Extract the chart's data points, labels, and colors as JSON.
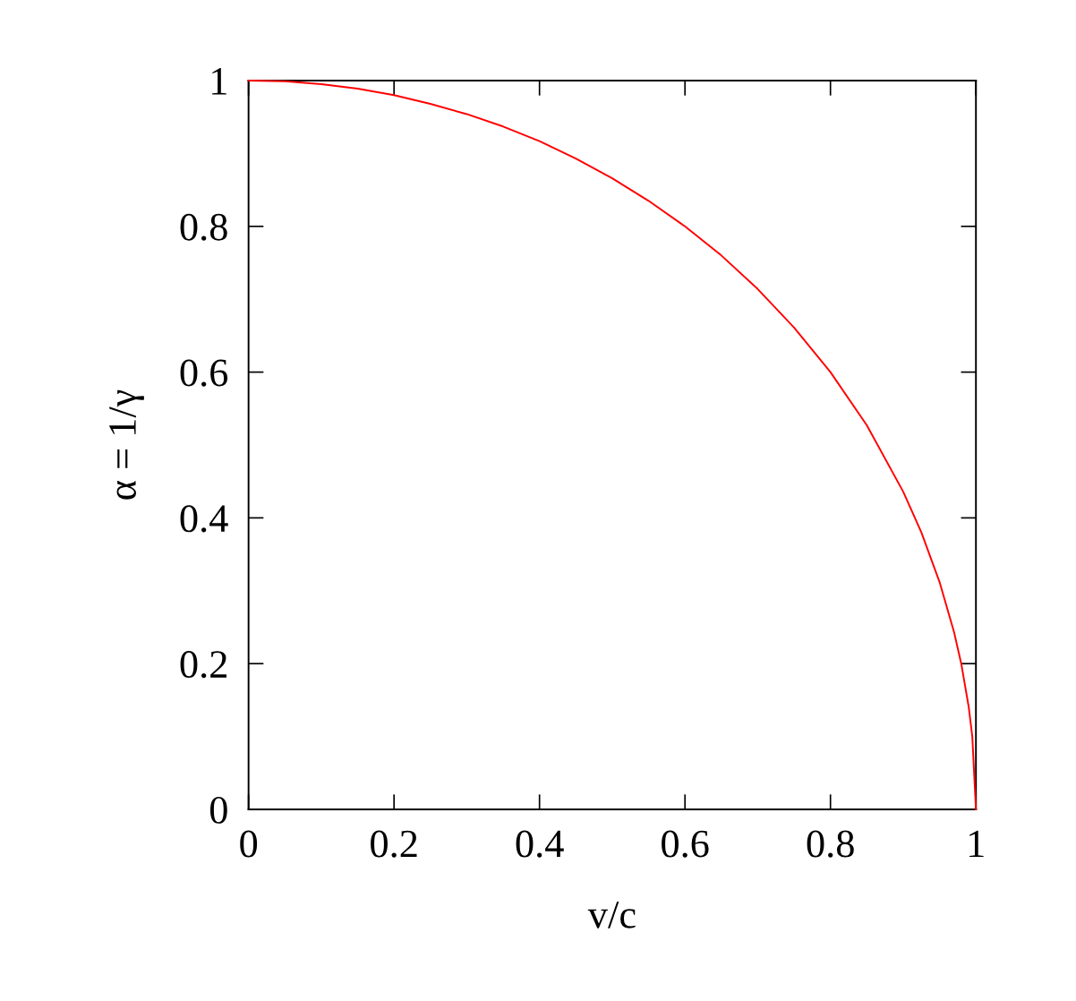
{
  "chart_data": {
    "type": "line",
    "xlabel": "v/c",
    "ylabel": "α = 1/γ",
    "x": [
      0,
      0.05,
      0.1,
      0.15,
      0.2,
      0.25,
      0.3,
      0.35,
      0.4,
      0.45,
      0.5,
      0.55,
      0.6,
      0.65,
      0.7,
      0.75,
      0.8,
      0.85,
      0.9,
      0.925,
      0.95,
      0.97,
      0.98,
      0.99,
      0.995,
      1
    ],
    "series": [
      {
        "color": "#ff0000",
        "values": [
          1,
          0.999,
          0.995,
          0.989,
          0.98,
          0.968,
          0.954,
          0.937,
          0.917,
          0.893,
          0.866,
          0.835,
          0.8,
          0.76,
          0.714,
          0.661,
          0.6,
          0.527,
          0.436,
          0.38,
          0.312,
          0.243,
          0.199,
          0.141,
          0.1,
          0
        ]
      }
    ],
    "xlim": [
      0,
      1
    ],
    "ylim": [
      0,
      1
    ],
    "xticks": [
      0,
      0.2,
      0.4,
      0.6,
      0.8,
      1
    ],
    "yticks": [
      0,
      0.2,
      0.4,
      0.6,
      0.8,
      1
    ],
    "grid": false,
    "legend": false,
    "marker": "none",
    "line_style": "solid"
  }
}
